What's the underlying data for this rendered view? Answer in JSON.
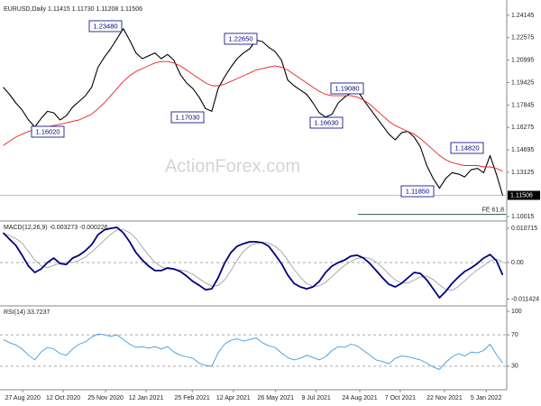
{
  "chart_data": [
    {
      "type": "line",
      "title": "EURUSD,Daily  1.11415 1.11730 1.11208 1.11506",
      "watermark": "ActionForex.com",
      "xlim": [
        0,
        80
      ],
      "ylim": [
        1.0983,
        1.249
      ],
      "yticks": [
        1.24145,
        1.22575,
        1.20995,
        1.19425,
        1.17845,
        1.16275,
        1.14695,
        1.13125,
        1.10015
      ],
      "last_price": 1.11506,
      "fe_level": {
        "label": "FE 61.8",
        "value": 1.1017
      },
      "series": [
        {
          "color": "#000000",
          "values": [
            1.191,
            1.186,
            1.18,
            1.175,
            1.168,
            1.163,
            1.169,
            1.174,
            1.173,
            1.168,
            1.171,
            1.177,
            1.181,
            1.185,
            1.191,
            1.205,
            1.212,
            1.218,
            1.225,
            1.232,
            1.224,
            1.215,
            1.211,
            1.213,
            1.215,
            1.211,
            1.214,
            1.21,
            1.2,
            1.194,
            1.19,
            1.184,
            1.176,
            1.174,
            1.19,
            1.198,
            1.205,
            1.211,
            1.215,
            1.218,
            1.224,
            1.223,
            1.219,
            1.216,
            1.21,
            1.196,
            1.192,
            1.189,
            1.186,
            1.18,
            1.173,
            1.17,
            1.172,
            1.18,
            1.184,
            1.187,
            1.189,
            1.182,
            1.176,
            1.17,
            1.164,
            1.158,
            1.154,
            1.159,
            1.16,
            1.156,
            1.149,
            1.136,
            1.127,
            1.12,
            1.127,
            1.131,
            1.13,
            1.128,
            1.133,
            1.134,
            1.131,
            1.143,
            1.13,
            1.115
          ]
        },
        {
          "color": "#e8231f",
          "values": [
            1.15,
            1.153,
            1.156,
            1.158,
            1.16,
            1.161,
            1.162,
            1.163,
            1.164,
            1.165,
            1.166,
            1.167,
            1.168,
            1.17,
            1.172,
            1.176,
            1.18,
            1.185,
            1.19,
            1.195,
            1.199,
            1.202,
            1.204,
            1.206,
            1.208,
            1.209,
            1.209,
            1.208,
            1.206,
            1.203,
            1.2,
            1.197,
            1.194,
            1.192,
            1.192,
            1.193,
            1.195,
            1.197,
            1.199,
            1.201,
            1.203,
            1.204,
            1.205,
            1.206,
            1.205,
            1.203,
            1.2,
            1.197,
            1.194,
            1.191,
            1.188,
            1.186,
            1.185,
            1.185,
            1.185,
            1.185,
            1.184,
            1.182,
            1.179,
            1.175,
            1.171,
            1.167,
            1.164,
            1.162,
            1.16,
            1.158,
            1.155,
            1.151,
            1.147,
            1.143,
            1.14,
            1.138,
            1.137,
            1.136,
            1.136,
            1.136,
            1.135,
            1.135,
            1.134,
            1.132
          ]
        }
      ],
      "annotations": [
        {
          "label": "1.23480",
          "value": 1.2348,
          "x": 19
        },
        {
          "label": "1.22650",
          "value": 1.2265,
          "x": 40
        },
        {
          "label": "1.19080",
          "value": 1.1908,
          "x": 56
        },
        {
          "label": "1.16630",
          "value": 1.1663,
          "x": 51
        },
        {
          "label": "1.17030",
          "value": 1.1703,
          "x": 33
        },
        {
          "label": "1.16020",
          "value": 1.1602,
          "x": 5
        },
        {
          "label": "1.14820",
          "value": 1.1482,
          "x": 77
        },
        {
          "label": "1.11850",
          "value": 1.1185,
          "x": 69
        }
      ]
    },
    {
      "type": "line",
      "title": "MACD(12,26,9) -0.003273 -0.000226",
      "xlim": [
        0,
        80
      ],
      "ylim": [
        -0.01297,
        0.01241
      ],
      "yticks": [
        0.010715,
        {
          "value": 0,
          "label": "0.00"
        },
        -0.011424
      ],
      "levels": [
        0
      ],
      "series": [
        {
          "color": "#a0a0a0",
          "values": [
            0.009,
            0.0085,
            0.0075,
            0.0061,
            0.0035,
            0.0008,
            -0.001,
            -0.0016,
            -0.0009,
            -0.0002,
            0.0001,
            0,
            0.0007,
            0.0017,
            0.0033,
            0.0051,
            0.007,
            0.0088,
            0.0102,
            0.0103,
            0.0094,
            0.0075,
            0.0049,
            0.0023,
            0.0001,
            -0.0013,
            -0.002,
            -0.0022,
            -0.0023,
            -0.0027,
            -0.0037,
            -0.005,
            -0.0064,
            -0.0074,
            -0.0072,
            -0.0055,
            -0.0026,
            0.0008,
            0.0035,
            0.0052,
            0.006,
            0.0063,
            0.0061,
            0.0051,
            0.0034,
            0.0008,
            -0.0021,
            -0.0046,
            -0.0066,
            -0.0075,
            -0.0073,
            -0.0062,
            -0.0044,
            -0.0025,
            -0.0009,
            0.0004,
            0.0013,
            0.0016,
            0.0013,
            0.0002,
            -0.0016,
            -0.0036,
            -0.0054,
            -0.0064,
            -0.0064,
            -0.0055,
            -0.0045,
            -0.0042,
            -0.0053,
            -0.007,
            -0.0084,
            -0.0087,
            -0.0075,
            -0.0057,
            -0.0039,
            -0.0023,
            -0.0009,
            0.0005,
            0.0011,
            0.0002
          ]
        },
        {
          "color": "#000080",
          "values": [
            0.0093,
            0.0073,
            0.0054,
            0.0023,
            -0.0011,
            -0.0031,
            -0.002,
            0,
            0.0014,
            -0.0003,
            -0.0006,
            0.0014,
            0.0023,
            0.0037,
            0.0056,
            0.0087,
            0.0102,
            0.0107,
            0.011,
            0.0093,
            0.0065,
            0.0031,
            0.0008,
            -0.0011,
            -0.0025,
            -0.0025,
            -0.0017,
            -0.002,
            -0.0028,
            -0.0042,
            -0.0059,
            -0.0071,
            -0.0085,
            -0.0082,
            -0.0048,
            -0.0003,
            0.0031,
            0.0051,
            0.0059,
            0.0065,
            0.0065,
            0.0062,
            0.0051,
            0.0025,
            -0.0003,
            -0.0039,
            -0.0065,
            -0.0076,
            -0.0082,
            -0.0076,
            -0.0059,
            -0.0031,
            -0.0011,
            0,
            0.0008,
            0.002,
            0.0023,
            0.0014,
            -0.0003,
            -0.0025,
            -0.0048,
            -0.0068,
            -0.0076,
            -0.0065,
            -0.0048,
            -0.0031,
            -0.0034,
            -0.0054,
            -0.0082,
            -0.011,
            -0.009,
            -0.0065,
            -0.0045,
            -0.0028,
            -0.0017,
            -0.0003,
            0.0014,
            0.0025,
            0.0006,
            -0.0039
          ]
        }
      ]
    },
    {
      "type": "line",
      "title": "RSI(14) 33.7237",
      "xlim": [
        0,
        80
      ],
      "ylim": [
        0,
        104.6
      ],
      "yticks": [
        100,
        70,
        30
      ],
      "levels": [
        70,
        30
      ],
      "series": [
        {
          "color": "#3d9be0",
          "values": [
            64,
            60,
            57,
            52,
            44,
            38,
            48,
            54,
            52,
            46,
            44,
            52,
            58,
            61,
            67,
            71,
            70,
            68,
            70,
            64,
            58,
            54,
            55,
            53,
            55,
            52,
            55,
            48,
            44,
            42,
            40,
            34,
            31,
            30,
            47,
            58,
            63,
            65,
            62,
            64,
            66,
            60,
            56,
            54,
            47,
            41,
            38,
            40,
            44,
            41,
            38,
            42,
            50,
            55,
            54,
            58,
            56,
            50,
            44,
            38,
            36,
            33,
            40,
            43,
            42,
            40,
            38,
            34,
            29,
            26,
            35,
            42,
            46,
            43,
            48,
            47,
            50,
            58,
            45,
            34
          ]
        }
      ],
      "xticks": [
        {
          "value": 3.6,
          "label": "27 Aug 2020"
        },
        {
          "value": 10,
          "label": "12 Oct 2020"
        },
        {
          "value": 16.7,
          "label": "25 Nov 2020"
        },
        {
          "value": 23.1,
          "label": "12 Jan 2021"
        },
        {
          "value": 30.4,
          "label": "25 Feb 2021"
        },
        {
          "value": 36.9,
          "label": "12 Apr 2021"
        },
        {
          "value": 43.6,
          "label": "26 May 2021"
        },
        {
          "value": 50,
          "label": "9 Jul 2021"
        },
        {
          "value": 56.9,
          "label": "24 Aug 2021"
        },
        {
          "value": 63.3,
          "label": "7 Oct 2021"
        },
        {
          "value": 70.3,
          "label": "22 Nov 2021"
        },
        {
          "value": 76.9,
          "label": "5 Jan 2022"
        }
      ]
    }
  ]
}
